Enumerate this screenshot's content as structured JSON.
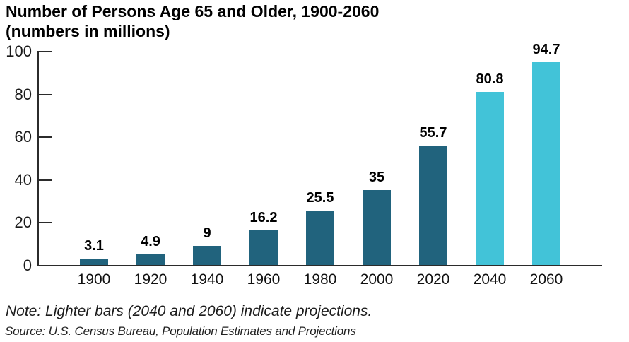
{
  "chart_data": {
    "type": "bar",
    "title_line1": "Number of Persons Age 65 and Older, 1900-2060",
    "title_line2": "(numbers in millions)",
    "categories": [
      "1900",
      "1920",
      "1940",
      "1960",
      "1980",
      "2000",
      "2020",
      "2040",
      "2060"
    ],
    "values": [
      3.1,
      4.9,
      9,
      16.2,
      25.5,
      35,
      55.7,
      80.8,
      94.7
    ],
    "value_labels": [
      "3.1",
      "4.9",
      "9",
      "16.2",
      "25.5",
      "35",
      "55.7",
      "80.8",
      "94.7"
    ],
    "projected": [
      false,
      false,
      false,
      false,
      false,
      false,
      false,
      true,
      true
    ],
    "ylim": [
      0,
      100
    ],
    "yticks": [
      0,
      20,
      40,
      60,
      80,
      100
    ],
    "grid": "off",
    "legend": "none",
    "colors": {
      "bar": "#21637d",
      "projected_bar": "#42c3d8",
      "axis": "#2b2b2b",
      "text": "#000000"
    },
    "note": "Note: Lighter bars (2040 and 2060) indicate projections.",
    "source": "Source: U.S. Census Bureau, Population Estimates and Projections"
  }
}
